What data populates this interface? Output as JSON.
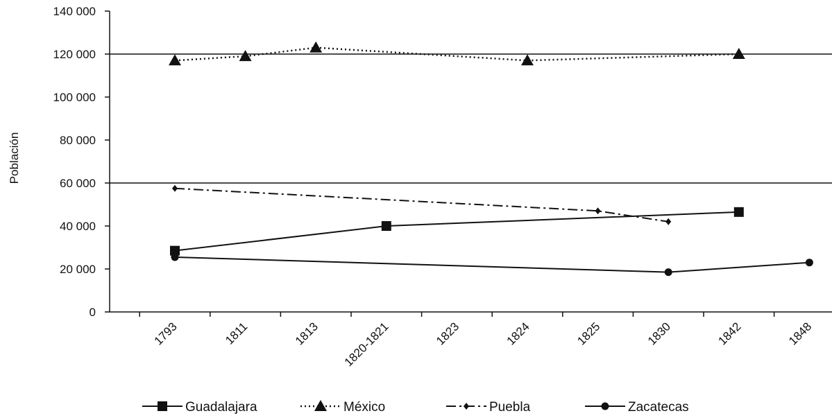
{
  "chart_data": {
    "type": "line",
    "ylabel": "Población",
    "xlabel": "",
    "ylim": [
      0,
      140000
    ],
    "y_ticks": [
      0,
      20000,
      40000,
      60000,
      80000,
      100000,
      120000,
      140000
    ],
    "y_tick_labels": [
      "0",
      "20 000",
      "40 000",
      "60 000",
      "80 000",
      "100 000",
      "120 000",
      "140 000"
    ],
    "categories": [
      "1793",
      "1811",
      "1813",
      "1820-1821",
      "1823",
      "1824",
      "1825",
      "1830",
      "1842",
      "1848"
    ],
    "reference_lines": [
      60000,
      120000
    ],
    "legend_position": "bottom",
    "series": [
      {
        "name": "Guadalajara",
        "marker": "square",
        "line_style": "solid",
        "color": "#111111",
        "points": [
          {
            "category": "1793",
            "value": 28500
          },
          {
            "category": "1820-1821",
            "value": 40000
          },
          {
            "category": "1842",
            "value": 46500
          }
        ]
      },
      {
        "name": "México",
        "marker": "triangle",
        "line_style": "dotted",
        "color": "#111111",
        "points": [
          {
            "category": "1793",
            "value": 117000
          },
          {
            "category": "1811",
            "value": 119000
          },
          {
            "category": "1813",
            "value": 123000
          },
          {
            "category": "1824",
            "value": 117000
          },
          {
            "category": "1842",
            "value": 120000
          }
        ]
      },
      {
        "name": "Puebla",
        "marker": "diamond",
        "line_style": "dash-dot",
        "color": "#111111",
        "points": [
          {
            "category": "1793",
            "value": 57500
          },
          {
            "category": "1825",
            "value": 47000
          },
          {
            "category": "1830",
            "value": 42000
          }
        ]
      },
      {
        "name": "Zacatecas",
        "marker": "circle",
        "line_style": "solid",
        "color": "#111111",
        "points": [
          {
            "category": "1793",
            "value": 25500
          },
          {
            "category": "1830",
            "value": 18500
          },
          {
            "category": "1848",
            "value": 23000
          }
        ]
      }
    ]
  }
}
